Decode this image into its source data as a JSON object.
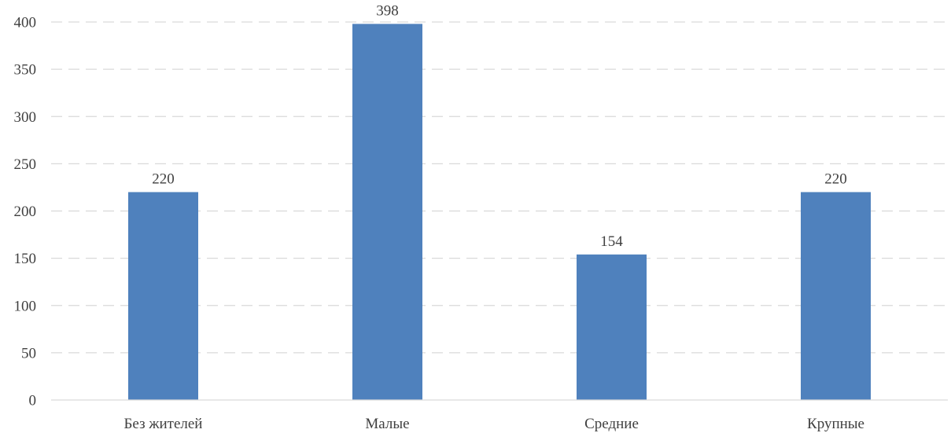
{
  "chart_data": {
    "type": "bar",
    "title": "",
    "xlabel": "",
    "ylabel": "",
    "categories": [
      "Без жителей",
      "Малые",
      "Средние",
      "Крупные"
    ],
    "values": [
      220,
      398,
      154,
      220
    ],
    "data_labels": [
      "220",
      "398",
      "154",
      "220"
    ],
    "ylim": [
      0,
      400
    ],
    "y_ticks": [
      0,
      50,
      100,
      150,
      200,
      250,
      300,
      350,
      400
    ],
    "y_tick_labels": [
      "0",
      "50",
      "100",
      "150",
      "200",
      "250",
      "300",
      "350",
      "400"
    ],
    "grid": true,
    "legend": "none",
    "bar_color": "#4f81bd"
  }
}
